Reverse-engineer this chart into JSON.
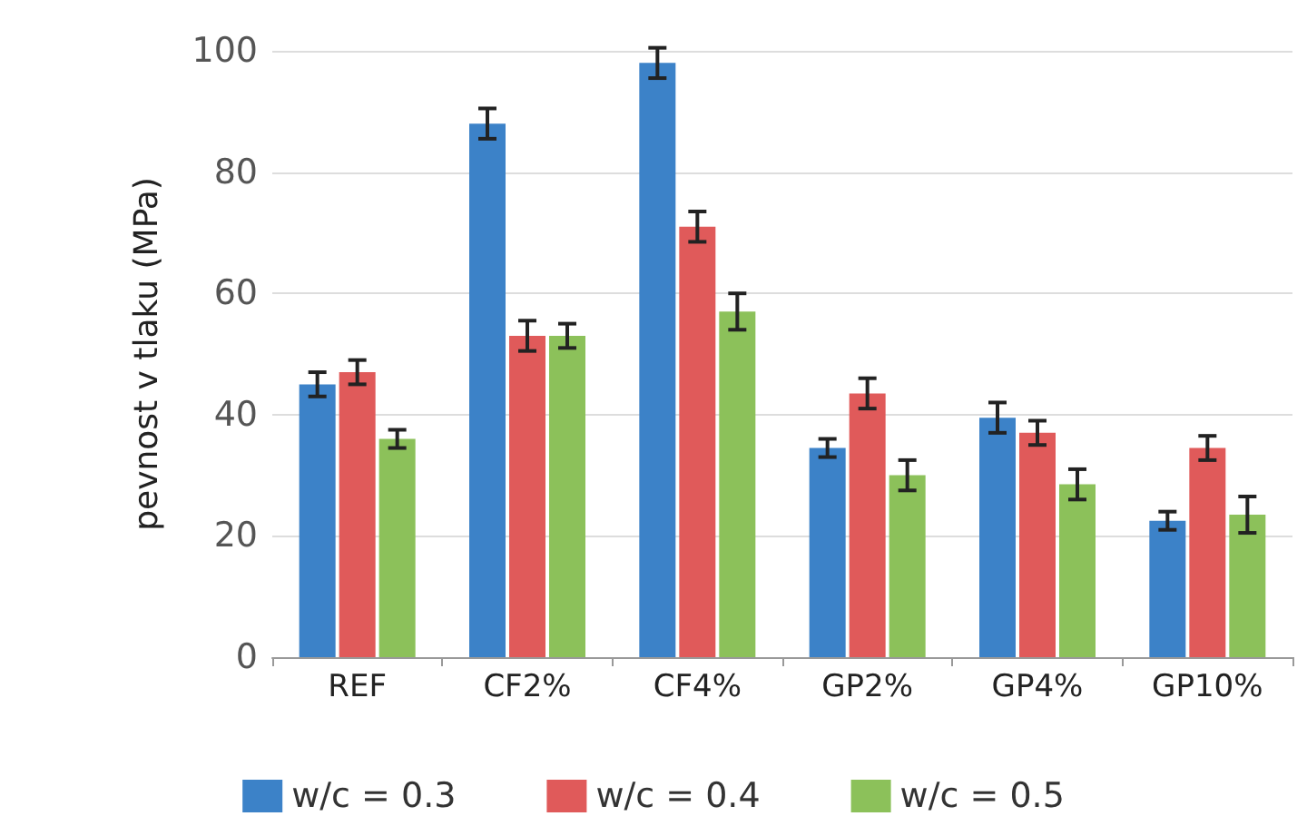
{
  "chart_data": {
    "type": "bar",
    "ylabel": "pevnost v tlaku (MPa)",
    "categories": [
      "REF",
      "CF2%",
      "CF4%",
      "GP2%",
      "GP4%",
      "GP10%"
    ],
    "series": [
      {
        "name": "w/c = 0.3",
        "color": "#3c82c8",
        "values": [
          45,
          88,
          98,
          34.5,
          39.5,
          22.5
        ],
        "errors": [
          2,
          2.5,
          2.5,
          1.5,
          2.5,
          1.5
        ]
      },
      {
        "name": "w/c = 0.4",
        "color": "#e05a5a",
        "values": [
          47,
          53,
          71,
          43.5,
          37,
          34.5
        ],
        "errors": [
          2,
          2.5,
          2.5,
          2.5,
          2,
          2
        ]
      },
      {
        "name": "w/c = 0.5",
        "color": "#8cc15a",
        "values": [
          36,
          53,
          57,
          30,
          28.5,
          23.5
        ],
        "errors": [
          1.5,
          2,
          3,
          2.5,
          2.5,
          3
        ]
      }
    ],
    "ylim": [
      0,
      100
    ],
    "yticks": [
      0,
      20,
      40,
      60,
      80,
      100
    ],
    "grid": "y",
    "legend": "bottom"
  }
}
